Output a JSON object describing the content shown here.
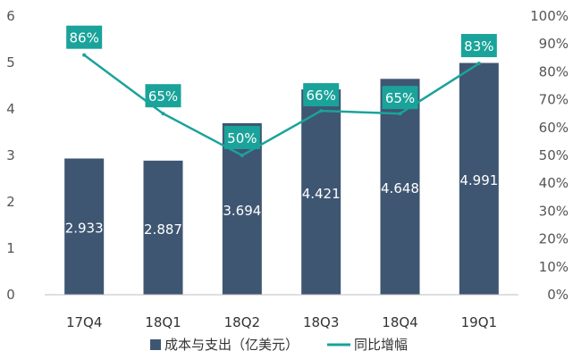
{
  "chart_data": {
    "type": "bar",
    "categories": [
      "17Q4",
      "18Q1",
      "18Q2",
      "18Q3",
      "18Q4",
      "19Q1"
    ],
    "series": [
      {
        "name": "成本与支出（亿美元）",
        "type": "bar",
        "axis": "left",
        "values": [
          2.933,
          2.887,
          3.694,
          4.421,
          4.648,
          4.991
        ],
        "labels": [
          "2.933",
          "2.887",
          "3.694",
          "4.421",
          "4.648",
          "4.991"
        ]
      },
      {
        "name": "同比增幅",
        "type": "line",
        "axis": "right",
        "values": [
          86,
          65,
          50,
          66,
          65,
          83
        ],
        "labels": [
          "86%",
          "65%",
          "50%",
          "66%",
          "65%",
          "83%"
        ]
      }
    ],
    "y_left": {
      "ylim": [
        0,
        6
      ],
      "ticks": [
        "0",
        "1",
        "2",
        "3",
        "4",
        "5",
        "6"
      ]
    },
    "y_right": {
      "ylim": [
        0,
        100
      ],
      "ticks": [
        "0%",
        "10%",
        "20%",
        "30%",
        "40%",
        "50%",
        "60%",
        "70%",
        "80%",
        "90%",
        "100%"
      ]
    },
    "grid": false,
    "legend": "bottom",
    "colors": {
      "bar": "#3f5672",
      "line": "#1aa39a",
      "label_box": "#1aa39a"
    }
  }
}
